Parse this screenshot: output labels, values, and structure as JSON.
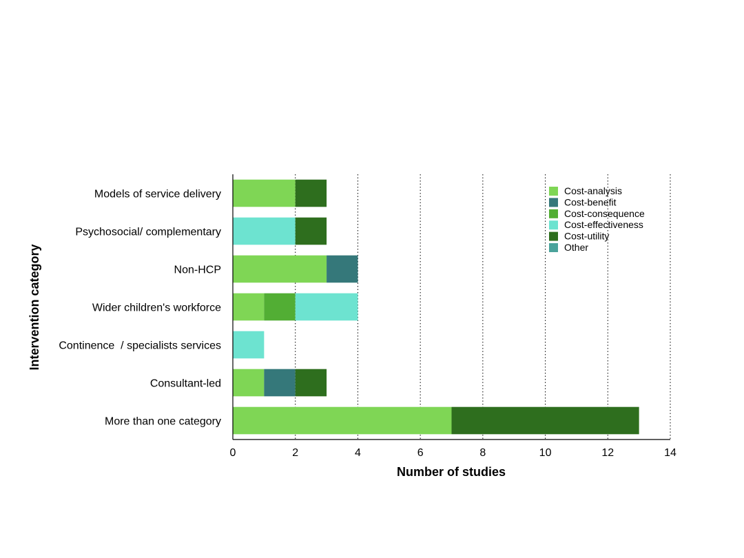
{
  "chart_data": {
    "type": "bar",
    "orientation": "horizontal",
    "stacked": true,
    "xlabel": "Number of studies",
    "ylabel": "Intervention category",
    "xlim": [
      0,
      14
    ],
    "xticks": [
      "0",
      "2",
      "4",
      "6",
      "8",
      "10",
      "12",
      "14"
    ],
    "grid": "vertical dotted",
    "legend_position": "top-right",
    "categories": [
      "Models of service delivery",
      "Psychosocial/ complementary",
      "Non-HCP",
      "Wider children's workforce",
      "Continence  / specialists services",
      "Consultant-led",
      "More than one category"
    ],
    "series": [
      {
        "name": "Cost-analysis",
        "color": "#7fd655",
        "values": [
          2,
          0,
          3,
          1,
          0,
          1,
          7
        ]
      },
      {
        "name": "Cost-benefit",
        "color": "#35787a",
        "values": [
          0,
          0,
          1,
          0,
          0,
          1,
          0
        ]
      },
      {
        "name": "Cost-consequence",
        "color": "#52ae34",
        "values": [
          0,
          0,
          0,
          1,
          0,
          0,
          0
        ]
      },
      {
        "name": "Cost-effectiveness",
        "color": "#6de3d0",
        "values": [
          0,
          2,
          0,
          2,
          1,
          0,
          0
        ]
      },
      {
        "name": "Cost-utility",
        "color": "#2e6e1e",
        "values": [
          1,
          1,
          0,
          0,
          0,
          1,
          6
        ]
      },
      {
        "name": "Other",
        "color": "#4aa39b",
        "values": [
          0,
          0,
          0,
          0,
          0,
          0,
          0
        ]
      }
    ]
  }
}
